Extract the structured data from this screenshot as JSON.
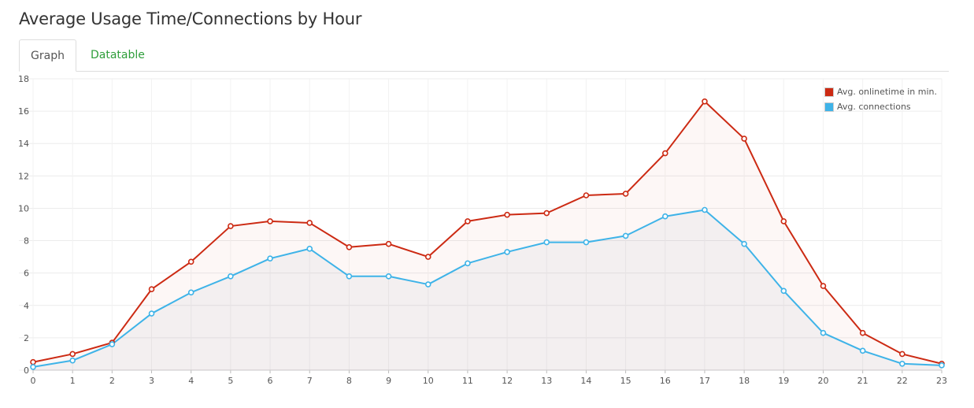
{
  "page": {
    "title": "Average Usage Time/Connections by Hour"
  },
  "tabs": [
    {
      "label": "Graph",
      "active": true
    },
    {
      "label": "Datatable",
      "active": false
    }
  ],
  "colors": {
    "series_1": "#cc2a13",
    "series_2": "#3eb3e8",
    "link": "#2e9e3a"
  },
  "chart_data": {
    "type": "area",
    "title": "",
    "xlabel": "",
    "ylabel": "",
    "x": [
      0,
      1,
      2,
      3,
      4,
      5,
      6,
      7,
      8,
      9,
      10,
      11,
      12,
      13,
      14,
      15,
      16,
      17,
      18,
      19,
      20,
      21,
      22,
      23
    ],
    "ylim": [
      0,
      18
    ],
    "yticks": [
      0,
      2,
      4,
      6,
      8,
      10,
      12,
      14,
      16,
      18
    ],
    "grid": true,
    "legend_position": "top-right",
    "series": [
      {
        "name": "Avg. onlinetime in min.",
        "color": "#cc2a13",
        "values": [
          0.5,
          1.0,
          1.7,
          5.0,
          6.7,
          8.9,
          9.2,
          9.1,
          7.6,
          7.8,
          7.0,
          9.2,
          9.6,
          9.7,
          10.8,
          10.9,
          13.4,
          16.6,
          14.3,
          9.2,
          5.2,
          2.3,
          1.0,
          0.4
        ]
      },
      {
        "name": "Avg. connections",
        "color": "#3eb3e8",
        "values": [
          0.2,
          0.6,
          1.6,
          3.5,
          4.8,
          5.8,
          6.9,
          7.5,
          5.8,
          5.8,
          5.3,
          6.6,
          7.3,
          7.9,
          7.9,
          8.3,
          9.5,
          9.9,
          7.8,
          4.9,
          2.3,
          1.2,
          0.4,
          0.3
        ]
      }
    ]
  }
}
